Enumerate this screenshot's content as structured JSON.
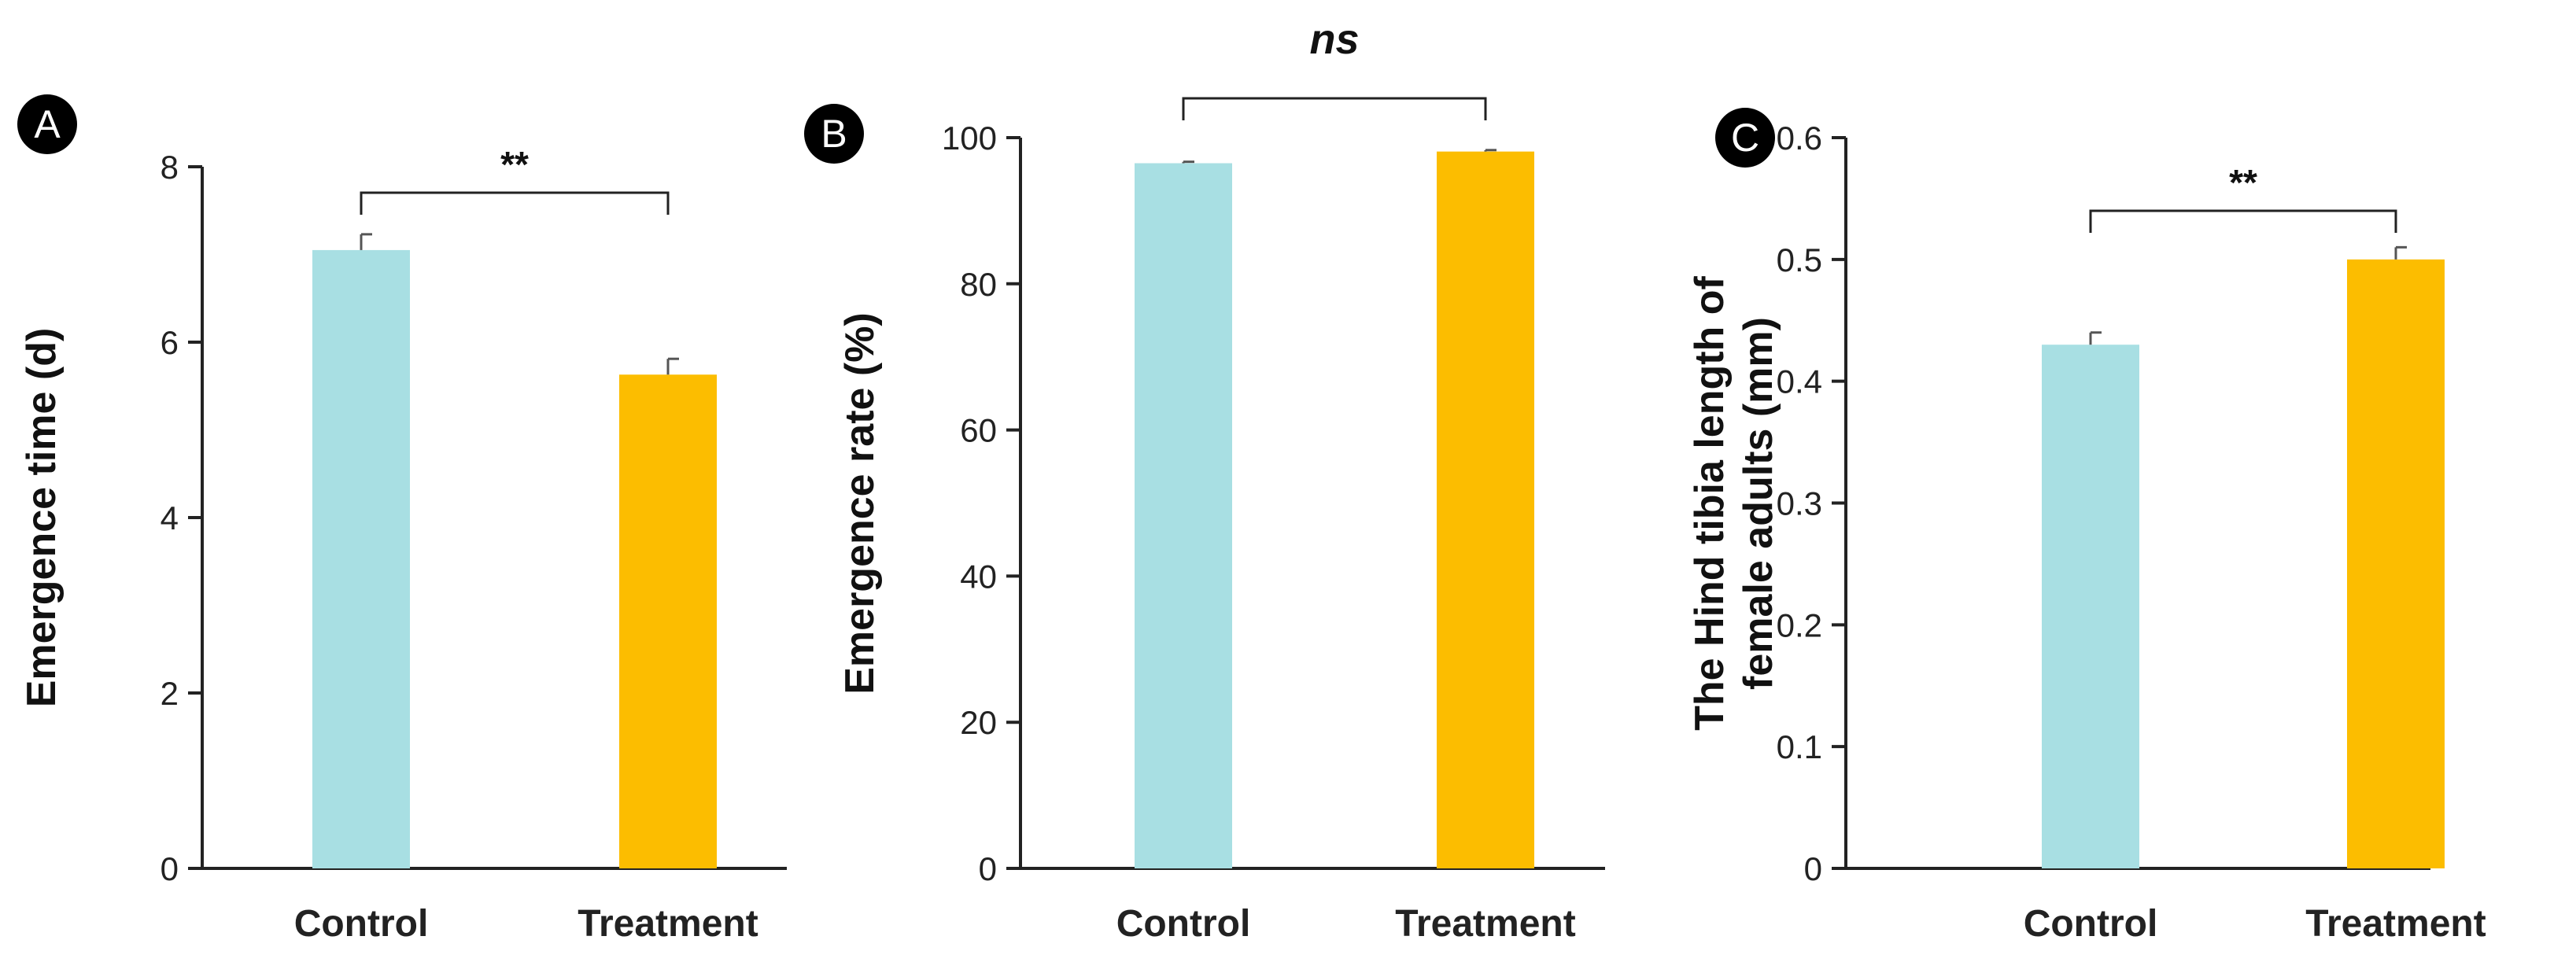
{
  "colors": {
    "control": "#a8dfe3",
    "treatment": "#fcbd00",
    "axis": "#222222"
  },
  "chart_data": [
    {
      "panel": "A",
      "type": "bar",
      "categories": [
        "Control",
        "Treatment"
      ],
      "values": [
        7.05,
        5.63
      ],
      "errors": [
        0.18,
        0.18
      ],
      "ylabel": "Emergence time (d)",
      "ylim": [
        0,
        8
      ],
      "yticks": [
        0,
        2,
        4,
        6,
        8
      ],
      "significance": "**"
    },
    {
      "panel": "B",
      "type": "bar",
      "categories": [
        "Control",
        "Treatment"
      ],
      "values": [
        96.5,
        98.1
      ],
      "errors": [
        0.2,
        0.2
      ],
      "ylabel": "Emergence rate (%)",
      "ylim": [
        0,
        100
      ],
      "yticks": [
        0,
        20,
        40,
        60,
        80,
        100
      ],
      "significance": "ns"
    },
    {
      "panel": "C",
      "type": "bar",
      "categories": [
        "Control",
        "Treatment"
      ],
      "values": [
        0.43,
        0.5
      ],
      "errors": [
        0.01,
        0.01
      ],
      "ylabel": [
        "The Hind tibia length of",
        "female adults (mm)"
      ],
      "ylim": [
        0,
        0.6
      ],
      "yticks": [
        0,
        0.1,
        0.2,
        0.3,
        0.4,
        0.5,
        0.6
      ],
      "significance": "**"
    }
  ]
}
